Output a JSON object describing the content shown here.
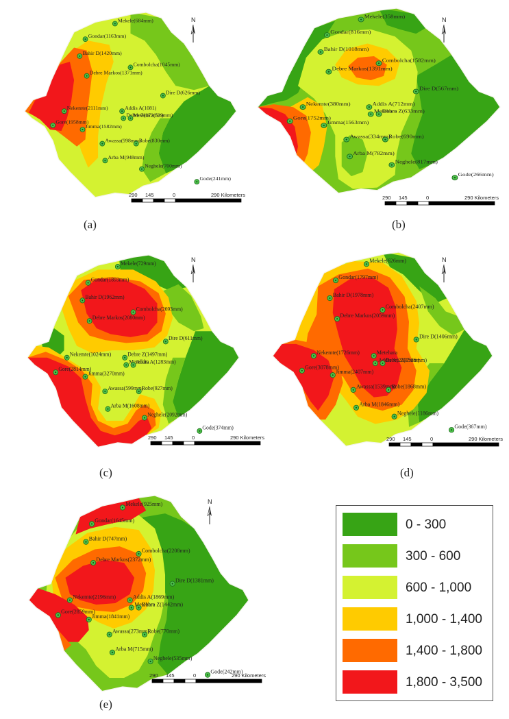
{
  "legend": {
    "classes": [
      {
        "label": "0 - 300",
        "color": "#37a415"
      },
      {
        "label": "300 - 600",
        "color": "#76c71b"
      },
      {
        "label": "600 - 1,000",
        "color": "#d4f231"
      },
      {
        "label": "1,000 - 1,400",
        "color": "#ffcb00"
      },
      {
        "label": "1,400 - 1,800",
        "color": "#ff6a00"
      },
      {
        "label": "1,800 - 3,500",
        "color": "#f2171b"
      }
    ]
  },
  "scale_bar": {
    "ticks": [
      "290",
      "145",
      "0",
      "290 Kilometers"
    ]
  },
  "north_arrow": {
    "label": "N"
  },
  "panels": [
    {
      "label": "(a)",
      "stations": [
        {
          "name": "Mekele(684mm)"
        },
        {
          "name": "Gondar(1163mm)"
        },
        {
          "name": "Bahir D(1420mm)"
        },
        {
          "name": "Combolcha(1045mm)"
        },
        {
          "name": "Debre Markos(1371mm)"
        },
        {
          "name": "Dire D(626mm)"
        },
        {
          "name": "Nekemte(2111mm)"
        },
        {
          "name": "Addis A(1081)"
        },
        {
          "name": "Debre Z(872mm)"
        },
        {
          "name": "Metehara(529mm)"
        },
        {
          "name": "Gore(1958mm)"
        },
        {
          "name": "Jimma(1582mm)"
        },
        {
          "name": "Awassa(998mm)"
        },
        {
          "name": "Robe(830mm)"
        },
        {
          "name": "Arba M(948mm)"
        },
        {
          "name": "Neghele(700mm)"
        },
        {
          "name": "Gode(241mm)"
        }
      ]
    },
    {
      "label": "(b)",
      "stations": [
        {
          "name": "Mekele(358mm)"
        },
        {
          "name": "Gondar(816mm)"
        },
        {
          "name": "Bahir D(1018mm)"
        },
        {
          "name": "Combolcha(1582mm)"
        },
        {
          "name": "Debre Markos(1391mm)"
        },
        {
          "name": "Dire D(567mm)"
        },
        {
          "name": "Nekemte(380mm)"
        },
        {
          "name": "Addis A(712mm)"
        },
        {
          "name": "Metehara"
        },
        {
          "name": "Debre Z(633mm)"
        },
        {
          "name": "Gore(1752mm)"
        },
        {
          "name": "Jimma(1563mm)"
        },
        {
          "name": "Awassa(334mm)"
        },
        {
          "name": "Robe(690mm)"
        },
        {
          "name": "Arba M(782mm)"
        },
        {
          "name": "Neghele(817mm)"
        },
        {
          "name": "Gode(266mm)"
        }
      ]
    },
    {
      "label": "(c)",
      "stations": [
        {
          "name": "Mekele(729mm)"
        },
        {
          "name": "Gondar(1893mm)"
        },
        {
          "name": "Bahir D(1962mm)"
        },
        {
          "name": "Combolcha(2693mm)"
        },
        {
          "name": "Debre Markos(2080mm)"
        },
        {
          "name": "Dire D(611mm)"
        },
        {
          "name": "Nekemte(1024mm)"
        },
        {
          "name": "Debre Z(1497mm)"
        },
        {
          "name": "Metehara"
        },
        {
          "name": "Addis A(1283mm)"
        },
        {
          "name": "Gore(2814mm)"
        },
        {
          "name": "Jimma(3270mm)"
        },
        {
          "name": "Awassa(599mm)"
        },
        {
          "name": "Robe(927mm)"
        },
        {
          "name": "Arba M(1608mm)"
        },
        {
          "name": "Neghele(2092mm)"
        },
        {
          "name": "Gode(374mm)"
        }
      ]
    },
    {
      "label": "(d)",
      "stations": [
        {
          "name": "Mekele(626mm)"
        },
        {
          "name": "Gondar(1797mm)"
        },
        {
          "name": "Bahir D(1978mm)"
        },
        {
          "name": "Combolcha(2407mm)"
        },
        {
          "name": "Debre Markos(2059mm)"
        },
        {
          "name": "Dire D(1406mm)"
        },
        {
          "name": "Nekemte(1726mm)"
        },
        {
          "name": "Metehara"
        },
        {
          "name": "Addis A(2337mm)"
        },
        {
          "name": "Debre Z(1536mm)"
        },
        {
          "name": "Gore(3078mm)"
        },
        {
          "name": "Jimma(2407mm)"
        },
        {
          "name": "Awassa(1539mm)"
        },
        {
          "name": "Robe(1868mm)"
        },
        {
          "name": "Arba M(1846mm)"
        },
        {
          "name": "Neghele(1186mm)"
        },
        {
          "name": "Gode(367mm)"
        }
      ]
    },
    {
      "label": "(e)",
      "stations": [
        {
          "name": "Mekele(925mm)"
        },
        {
          "name": "Gondar(1645mm)"
        },
        {
          "name": "Bahir D(747mm)"
        },
        {
          "name": "Combolcha(2208mm)"
        },
        {
          "name": "Debre Markos(2372mm)"
        },
        {
          "name": "Dire D(1381mm)"
        },
        {
          "name": "Nekemte(2196mm)"
        },
        {
          "name": "Addis A(1869mm)"
        },
        {
          "name": "Metehara"
        },
        {
          "name": "Debre Z(1442mm)"
        },
        {
          "name": "Gore(2859mm)"
        },
        {
          "name": "Jimma(1841mm)"
        },
        {
          "name": "Awassa(273mm)"
        },
        {
          "name": "Robe(770mm)"
        },
        {
          "name": "Arba M(715mm)"
        },
        {
          "name": "Neghele(535mm)"
        },
        {
          "name": "Gode(242mm)"
        }
      ]
    }
  ]
}
